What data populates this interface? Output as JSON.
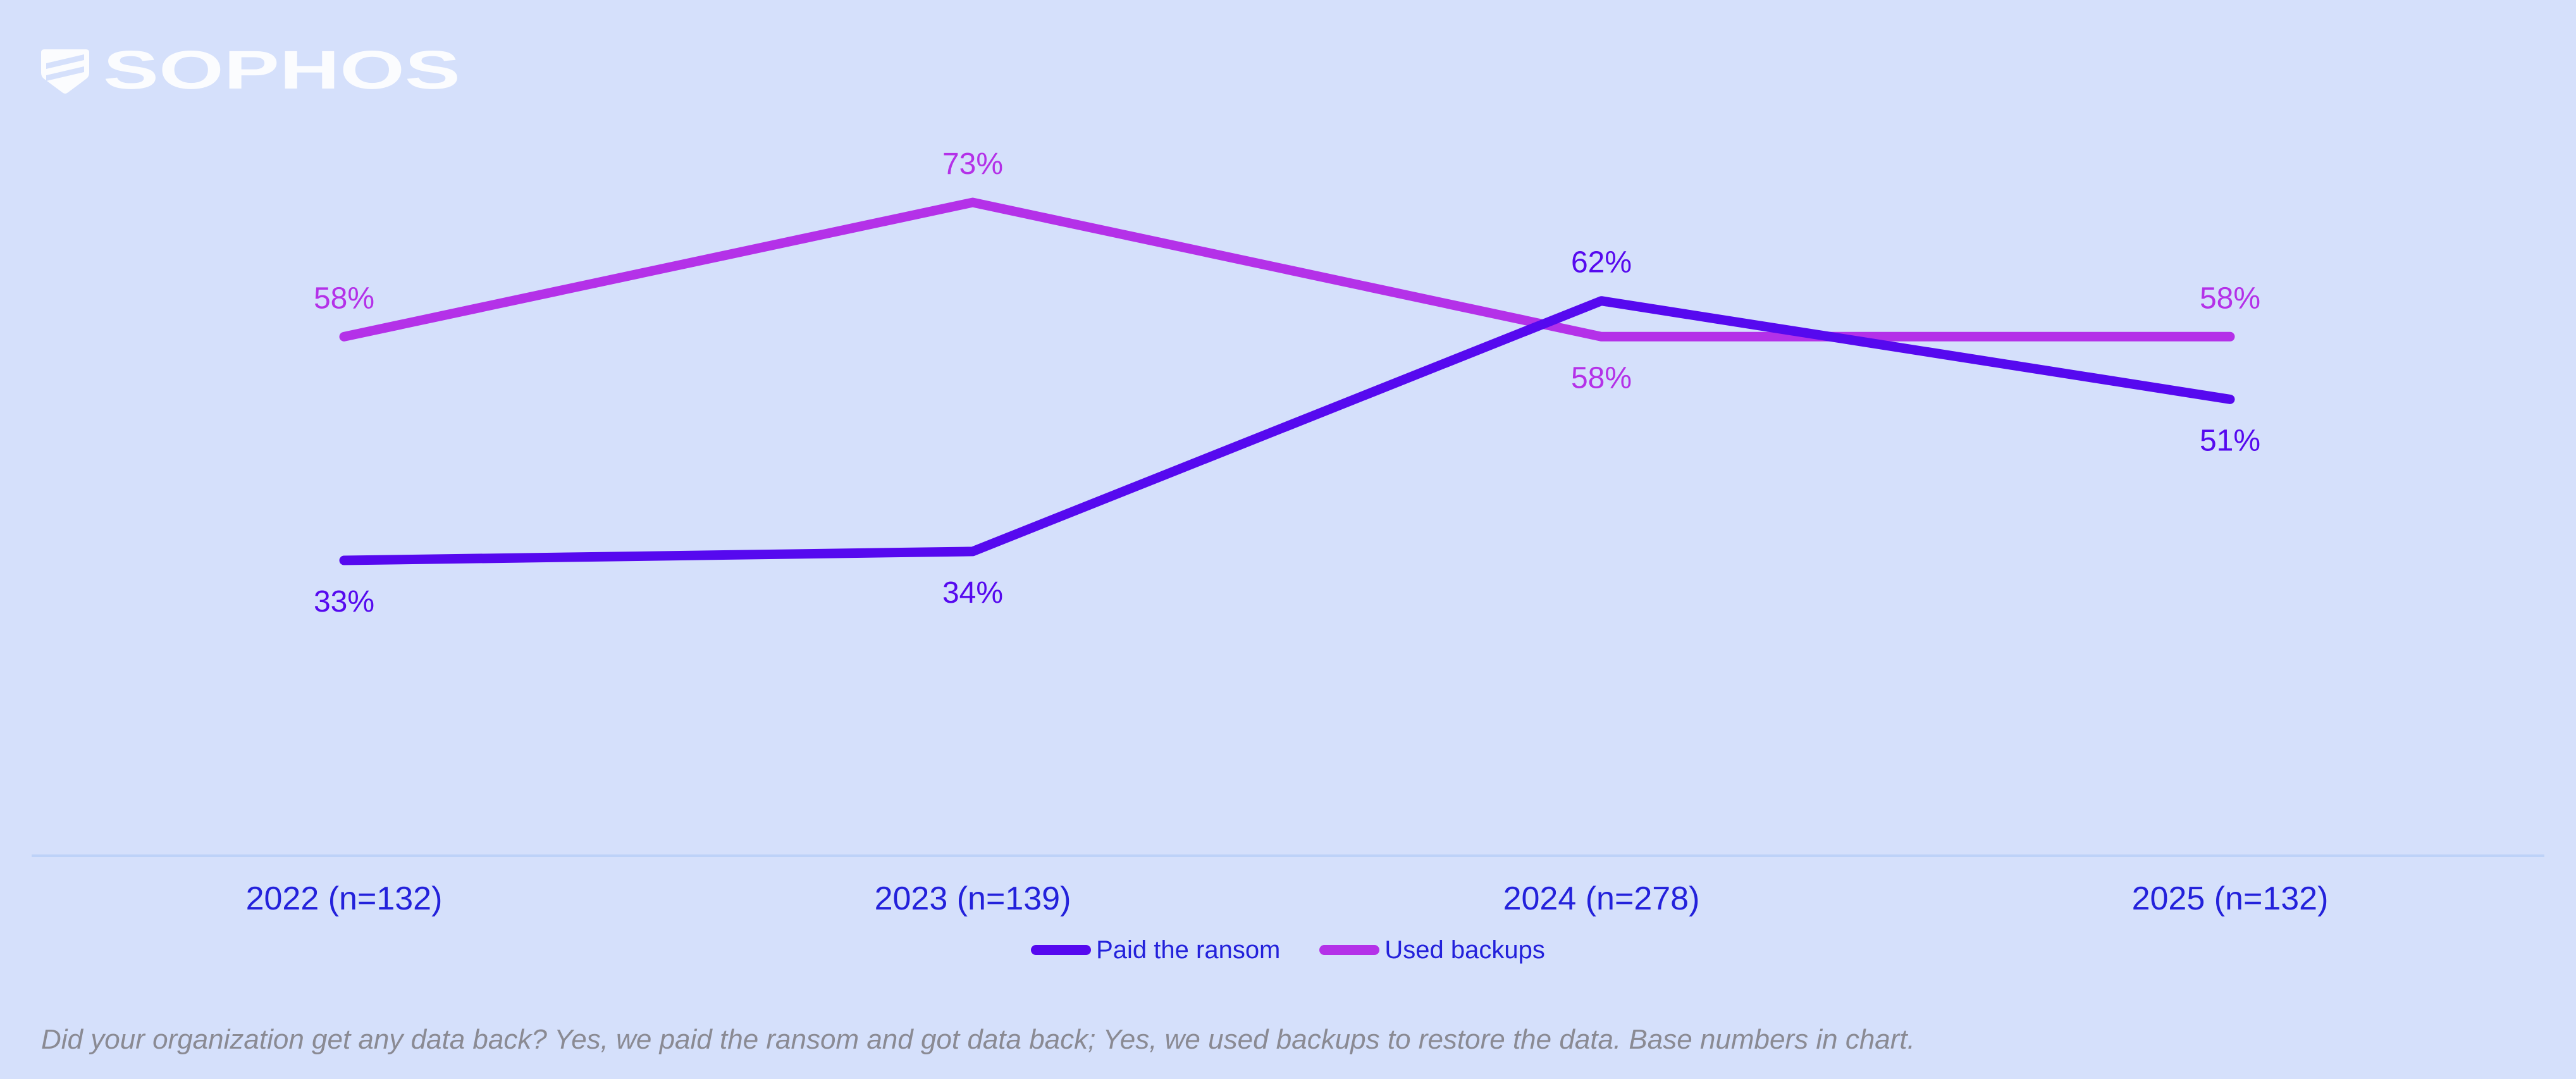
{
  "header": {
    "brand": "SOPHOS"
  },
  "colors": {
    "background": "#d5e0fb",
    "logo": "#fbfcfe",
    "axis_text": "#2321db",
    "axis_line": "#bdd2f8",
    "footnote_text": "#8a8a93"
  },
  "chart_data": {
    "type": "line",
    "categories": [
      "2022 (n=132)",
      "2023 (n=139)",
      "2024 (n=278)",
      "2025 (n=132)"
    ],
    "series": [
      {
        "name": "Paid the ransom",
        "color": "#5609ef",
        "values": [
          33,
          34,
          62,
          51
        ],
        "label_positions": [
          "below",
          "below",
          "above",
          "below"
        ]
      },
      {
        "name": "Used backups",
        "color": "#b431e8",
        "values": [
          58,
          73,
          58,
          58
        ],
        "label_positions": [
          "above",
          "above",
          "below",
          "above"
        ]
      }
    ],
    "value_suffix": "%",
    "ylim": [
      0,
      95
    ],
    "grid": false,
    "legend_position": "bottom",
    "data_labels": true
  },
  "footnote": {
    "text": "Did your organization get any data back? Yes, we paid the ransom and got data back; Yes, we used backups to restore the data. Base numbers in chart."
  }
}
